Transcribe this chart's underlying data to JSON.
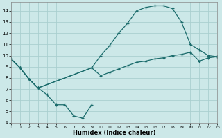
{
  "xlabel": "Humidex (Indice chaleur)",
  "bg_color": "#cce8e8",
  "grid_color": "#aacfcf",
  "line_color": "#1a6b6b",
  "xlim": [
    0,
    23
  ],
  "ylim": [
    4,
    14.8
  ],
  "xticks": [
    0,
    1,
    2,
    3,
    4,
    5,
    6,
    7,
    8,
    9,
    10,
    11,
    12,
    13,
    14,
    15,
    16,
    17,
    18,
    19,
    20,
    21,
    22,
    23
  ],
  "yticks": [
    4,
    5,
    6,
    7,
    8,
    9,
    10,
    11,
    12,
    13,
    14
  ],
  "line1": {
    "x": [
      0,
      1,
      2,
      3,
      4,
      5,
      6,
      7,
      8,
      9
    ],
    "y": [
      9.7,
      8.9,
      7.9,
      7.1,
      6.5,
      5.6,
      5.6,
      4.6,
      4.4,
      5.6
    ]
  },
  "line2": {
    "x": [
      0,
      1,
      2,
      3,
      9,
      10,
      11,
      12,
      13,
      14,
      15,
      16,
      17,
      18,
      19,
      20,
      21,
      22,
      23
    ],
    "y": [
      9.7,
      8.9,
      7.9,
      7.1,
      8.9,
      10.0,
      10.9,
      12.0,
      12.9,
      14.0,
      14.3,
      14.45,
      14.45,
      14.2,
      13.0,
      11.0,
      10.5,
      10.0,
      9.9
    ]
  },
  "line3": {
    "x": [
      0,
      1,
      2,
      3,
      9,
      10,
      11,
      12,
      13,
      14,
      15,
      16,
      17,
      18,
      19,
      20,
      21,
      22,
      23
    ],
    "y": [
      9.7,
      8.9,
      7.9,
      7.1,
      8.9,
      8.2,
      8.5,
      8.8,
      9.1,
      9.4,
      9.5,
      9.7,
      9.8,
      10.0,
      10.1,
      10.3,
      9.5,
      9.8,
      9.9
    ]
  }
}
